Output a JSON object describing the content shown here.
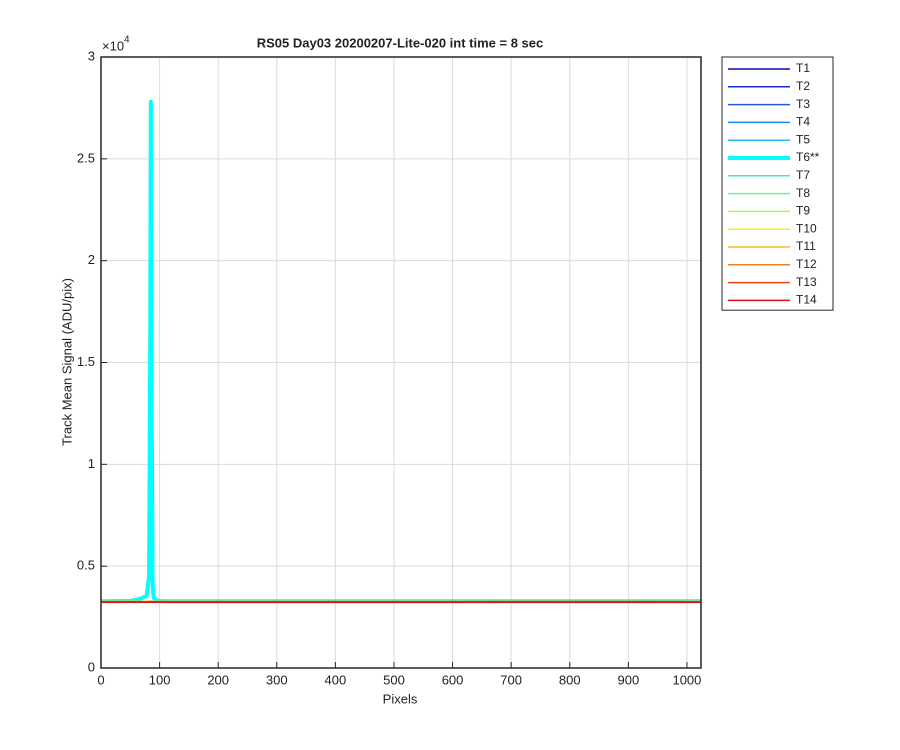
{
  "chart_data": {
    "type": "line",
    "title": "RS05 Day03 20200207-Lite-020 int time = 8 sec",
    "xlabel": "Pixels",
    "ylabel": "Track Mean Signal (ADU/pix)",
    "y_exponent_base": "×10",
    "y_exponent_power": "4",
    "x": [
      0,
      50,
      60,
      70,
      78,
      82,
      84,
      85,
      86,
      88,
      90,
      94,
      100,
      110,
      200,
      400,
      600,
      800,
      1024
    ],
    "xlim": [
      0,
      1024
    ],
    "xticks": [
      0,
      100,
      200,
      300,
      400,
      500,
      600,
      700,
      800,
      900,
      1000
    ],
    "ylim": [
      0,
      30000
    ],
    "yticks": [
      0,
      {
        "value": 5000,
        "label": "0.5"
      },
      {
        "value": 10000,
        "label": "1"
      },
      {
        "value": 15000,
        "label": "1.5"
      },
      {
        "value": 20000,
        "label": "2"
      },
      {
        "value": 25000,
        "label": "2.5"
      },
      {
        "value": 30000,
        "label": "3"
      }
    ],
    "grid": true,
    "legend": "outside-right",
    "series": [
      {
        "name": "T1",
        "color": "#0a0aa8",
        "linewidth": 1.5,
        "values": [
          3262,
          3262,
          3262,
          3262,
          3262,
          3262,
          3262,
          3262,
          3262,
          3262,
          3262,
          3262,
          3262,
          3262,
          3262,
          3262,
          3262,
          3262,
          3262
        ]
      },
      {
        "name": "T2",
        "color": "#1428d0",
        "linewidth": 1.5,
        "values": [
          3264,
          3264,
          3264,
          3264,
          3264,
          3264,
          3264,
          3264,
          3264,
          3264,
          3264,
          3264,
          3264,
          3264,
          3264,
          3264,
          3264,
          3264,
          3264
        ]
      },
      {
        "name": "T3",
        "color": "#1e5ae6",
        "linewidth": 1.5,
        "values": [
          3265,
          3265,
          3265,
          3265,
          3265,
          3265,
          3265,
          3265,
          3265,
          3265,
          3265,
          3265,
          3265,
          3265,
          3265,
          3265,
          3265,
          3265,
          3265
        ]
      },
      {
        "name": "T4",
        "color": "#2288e0",
        "linewidth": 1.5,
        "values": [
          3266,
          3266,
          3266,
          3266,
          3266,
          3266,
          3266,
          3266,
          3266,
          3266,
          3266,
          3266,
          3266,
          3266,
          3266,
          3266,
          3266,
          3266,
          3266
        ]
      },
      {
        "name": "T5",
        "color": "#22b8f0",
        "linewidth": 1.5,
        "values": [
          3268,
          3270,
          3272,
          3275,
          3280,
          3285,
          3290,
          3290,
          3290,
          3285,
          3280,
          3275,
          3270,
          3268,
          3268,
          3268,
          3268,
          3268,
          3268
        ]
      },
      {
        "name": "T6**",
        "color": "#00ffff",
        "linewidth": 4,
        "values": [
          3280,
          3290,
          3350,
          3430,
          3550,
          4500,
          16000,
          27800,
          16000,
          4200,
          3450,
          3330,
          3290,
          3280,
          3275,
          3275,
          3275,
          3275,
          3275
        ]
      },
      {
        "name": "T7",
        "color": "#40e6c8",
        "linewidth": 1.5,
        "values": [
          3270,
          3270,
          3270,
          3270,
          3270,
          3270,
          3270,
          3270,
          3270,
          3270,
          3270,
          3270,
          3270,
          3270,
          3270,
          3270,
          3270,
          3270,
          3270
        ]
      },
      {
        "name": "T8",
        "color": "#70ee9a",
        "linewidth": 1.5,
        "values": [
          3268,
          3268,
          3268,
          3268,
          3268,
          3268,
          3268,
          3268,
          3268,
          3268,
          3268,
          3268,
          3268,
          3268,
          3268,
          3268,
          3268,
          3268,
          3268
        ]
      },
      {
        "name": "T9",
        "color": "#b4f05a",
        "linewidth": 1.5,
        "values": [
          3266,
          3266,
          3266,
          3266,
          3266,
          3266,
          3266,
          3266,
          3266,
          3266,
          3266,
          3266,
          3266,
          3266,
          3266,
          3266,
          3266,
          3266,
          3266
        ]
      },
      {
        "name": "T10",
        "color": "#f4f01e",
        "linewidth": 1.5,
        "values": [
          3264,
          3264,
          3264,
          3264,
          3264,
          3264,
          3264,
          3264,
          3264,
          3264,
          3264,
          3264,
          3264,
          3264,
          3264,
          3264,
          3264,
          3264,
          3264
        ]
      },
      {
        "name": "T11",
        "color": "#f2c020",
        "linewidth": 1.5,
        "values": [
          3262,
          3262,
          3262,
          3262,
          3262,
          3262,
          3262,
          3262,
          3262,
          3262,
          3262,
          3262,
          3262,
          3262,
          3262,
          3262,
          3262,
          3262,
          3262
        ]
      },
      {
        "name": "T12",
        "color": "#f08020",
        "linewidth": 1.5,
        "values": [
          3260,
          3260,
          3260,
          3260,
          3260,
          3260,
          3260,
          3260,
          3260,
          3260,
          3260,
          3260,
          3260,
          3260,
          3260,
          3260,
          3260,
          3270,
          3260
        ]
      },
      {
        "name": "T13",
        "color": "#f04414",
        "linewidth": 1.5,
        "values": [
          3255,
          3255,
          3255,
          3255,
          3255,
          3255,
          3255,
          3255,
          3255,
          3255,
          3255,
          3255,
          3255,
          3255,
          3255,
          3255,
          3255,
          3255,
          3255
        ]
      },
      {
        "name": "T14",
        "color": "#e01010",
        "linewidth": 1.5,
        "values": [
          3230,
          3230,
          3230,
          3230,
          3230,
          3230,
          3230,
          3230,
          3230,
          3230,
          3230,
          3230,
          3230,
          3230,
          3230,
          3230,
          3230,
          3230,
          3230
        ]
      }
    ]
  }
}
